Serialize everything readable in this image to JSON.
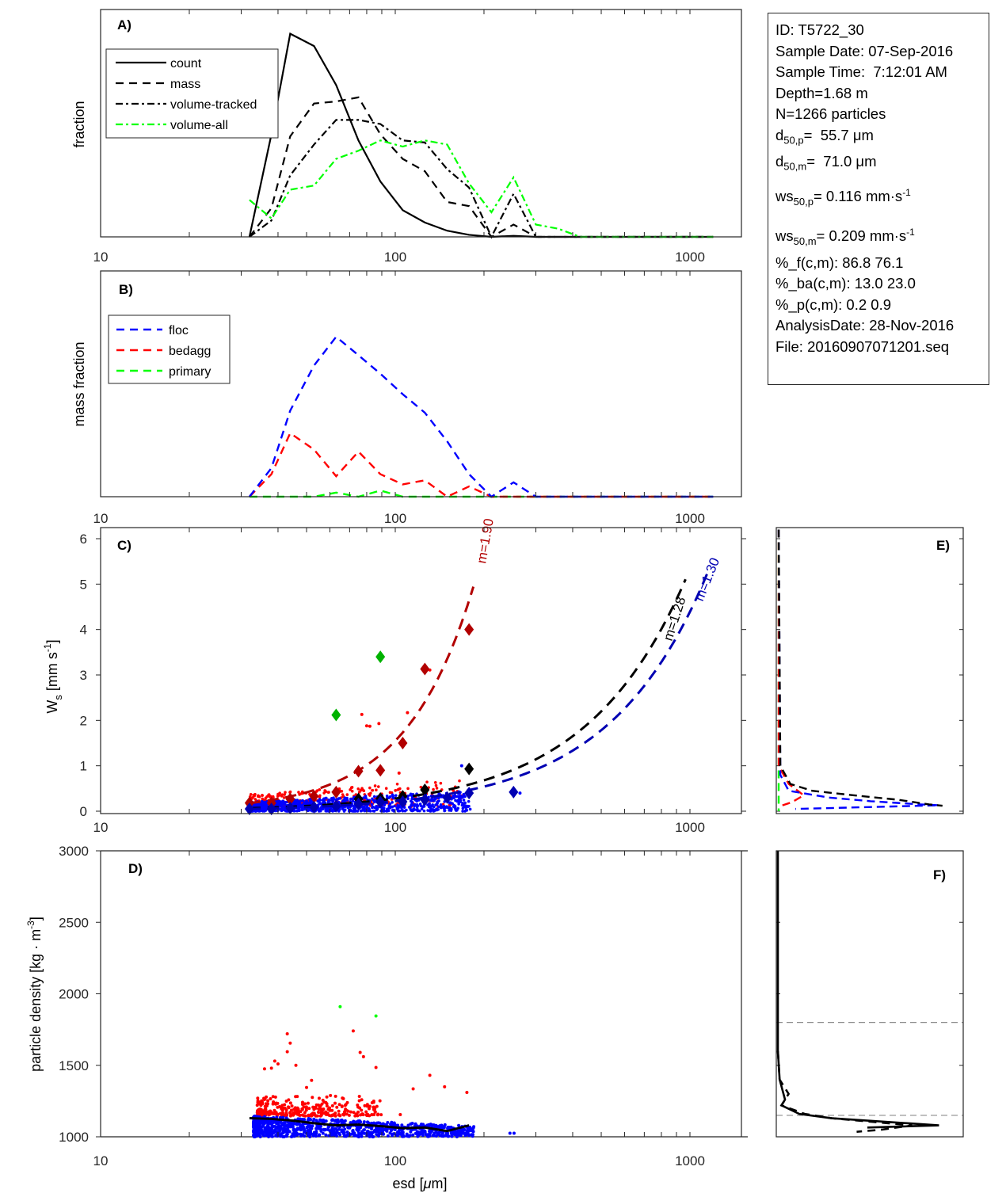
{
  "info_box": {
    "id": "ID: T5722_30",
    "sample_date": "Sample Date: 07-Sep-2016",
    "sample_time": "Sample Time:  7:12:01 AM",
    "depth": "Depth=1.68 m",
    "n_particles": "N=1266 particles",
    "d50p_prefix": "d",
    "d50p_sub": "50,p",
    "d50p_value": "=  55.7 μm",
    "d50m_prefix": "d",
    "d50m_sub": "50,m",
    "d50m_value": "=  71.0 μm",
    "ws50p_prefix": "ws",
    "ws50p_sub": "50,p",
    "ws50p_value": "= 0.116 mm·s",
    "ws50p_sup": "-1",
    "ws50m_prefix": "ws",
    "ws50m_sub": "50,m",
    "ws50m_value": "= 0.209 mm·s",
    "ws50m_sup": "-1",
    "pct_f": "%_f(c,m): 86.8 76.1",
    "pct_ba": "%_ba(c,m): 13.0 23.0",
    "pct_p": "%_p(c,m): 0.2 0.9",
    "analysis_date": "AnalysisDate: 28-Nov-2016",
    "file": "File: 20160907071201.seq"
  },
  "colors": {
    "black": "#000000",
    "green_bright": "#00ff00",
    "blue": "#0000ff",
    "red": "#ff0000",
    "dark_red": "#b20000",
    "dark_blue": "#0000b2",
    "dark_green": "#00b200",
    "gray_ref": "#8c8c8c",
    "axis": "#262626"
  },
  "chart_data": [
    {
      "panel": "A)",
      "type": "line",
      "xscale": "log",
      "xlim": [
        10,
        1500
      ],
      "xticks": [
        10,
        100,
        1000
      ],
      "xticklabels": [
        "10",
        "100",
        "1000"
      ],
      "ylabel": "fraction",
      "ylim": [
        0,
        1
      ],
      "legend": {
        "placement": "top-left",
        "entries": [
          "count",
          "mass",
          "volume-tracked",
          "volume-all"
        ]
      },
      "x": [
        32,
        38,
        44,
        53,
        63,
        75,
        89,
        106,
        126,
        150,
        178,
        212,
        252,
        300,
        357,
        424,
        504,
        600,
        713,
        848,
        1008,
        1200
      ],
      "series": [
        {
          "name": "count",
          "style": "solid",
          "color": "#000000",
          "values": [
            0.0,
            0.5,
            0.99,
            0.93,
            0.74,
            0.47,
            0.27,
            0.13,
            0.07,
            0.03,
            0.01,
            0.0,
            0.005,
            0.0,
            0.0,
            0.0,
            0.0,
            0.0,
            0.0,
            0.0,
            0.0,
            0.0
          ]
        },
        {
          "name": "mass",
          "style": "dashed",
          "color": "#000000",
          "values": [
            0.0,
            0.14,
            0.49,
            0.65,
            0.66,
            0.68,
            0.5,
            0.38,
            0.32,
            0.17,
            0.15,
            0.0,
            0.06,
            0.0,
            0.0,
            0.0,
            0.0,
            0.0,
            0.0,
            0.0,
            0.0,
            0.0
          ]
        },
        {
          "name": "volume-tracked",
          "style": "dashdot",
          "color": "#000000",
          "values": [
            0.0,
            0.08,
            0.3,
            0.45,
            0.57,
            0.57,
            0.55,
            0.47,
            0.46,
            0.33,
            0.24,
            0.0,
            0.21,
            0.0,
            0.0,
            0.0,
            0.0,
            0.0,
            0.0,
            0.0,
            0.0,
            0.0
          ]
        },
        {
          "name": "volume-all",
          "style": "dashdot",
          "color": "#00ff00",
          "values": [
            0.18,
            0.09,
            0.23,
            0.25,
            0.38,
            0.42,
            0.47,
            0.44,
            0.47,
            0.45,
            0.26,
            0.12,
            0.29,
            0.06,
            0.04,
            0.0,
            0.0,
            0.0,
            0.0,
            0.0,
            0.0,
            0.0
          ]
        }
      ]
    },
    {
      "panel": "B)",
      "type": "line",
      "xscale": "log",
      "xlim": [
        10,
        1500
      ],
      "xticks": [
        10,
        100,
        1000
      ],
      "xticklabels": [
        "10",
        "100",
        "1000"
      ],
      "ylabel": "mass fraction",
      "ylim": [
        0,
        1
      ],
      "legend": {
        "placement": "top-left",
        "entries": [
          "floc",
          "bedagg",
          "primary"
        ]
      },
      "x": [
        32,
        38,
        44,
        53,
        63,
        75,
        89,
        106,
        126,
        150,
        178,
        212,
        252,
        300,
        357,
        424,
        504,
        600,
        713,
        848,
        1008,
        1200
      ],
      "series": [
        {
          "name": "floc",
          "style": "dashed",
          "color": "#0000ff",
          "values": [
            0.0,
            0.14,
            0.42,
            0.64,
            0.78,
            0.69,
            0.6,
            0.5,
            0.41,
            0.27,
            0.11,
            0.0,
            0.07,
            0.0,
            0.0,
            0.0,
            0.0,
            0.0,
            0.0,
            0.0,
            0.0,
            0.0
          ]
        },
        {
          "name": "bedagg",
          "style": "dashed",
          "color": "#ff0000",
          "values": [
            0.0,
            0.11,
            0.31,
            0.23,
            0.1,
            0.22,
            0.11,
            0.06,
            0.08,
            0.0,
            0.05,
            0.0,
            0.0,
            0.0,
            0.0,
            0.0,
            0.0,
            0.0,
            0.0,
            0.0,
            0.0,
            0.0
          ]
        },
        {
          "name": "primary",
          "style": "dashed",
          "color": "#00ff00",
          "values": [
            0.0,
            0.0,
            0.0,
            0.0,
            0.02,
            0.0,
            0.03,
            0.0,
            0.0,
            0.0,
            0.0,
            0.0,
            0.0,
            0.0,
            0.0,
            0.0,
            0.0,
            0.0,
            0.0,
            0.0,
            0.0,
            0.0
          ]
        }
      ]
    },
    {
      "panel": "C)",
      "type": "scatter",
      "xscale": "log",
      "xlim": [
        10,
        1500
      ],
      "xticks": [
        10,
        100,
        1000
      ],
      "xticklabels": [
        "10",
        "100",
        "1000"
      ],
      "ylabel_main": "W",
      "ylabel_sub": "s",
      "ylabel_rest": " [mm s",
      "ylabel_sup": "-1",
      "ylabel_end": "]",
      "ylim": [
        0,
        6.2
      ],
      "yticks": [
        0,
        1,
        2,
        3,
        4,
        5,
        6
      ],
      "yticklabels": [
        "0",
        "1",
        "2",
        "3",
        "4",
        "5",
        "6"
      ],
      "fits": [
        {
          "name": "bedagg fit",
          "label": "m=1.90",
          "color": "#b20000",
          "exponent": 1.9,
          "x_range": [
            32,
            185
          ],
          "y_at_100": 1.55
        },
        {
          "name": "all fit",
          "label": "m=1.28",
          "color": "#000000",
          "exponent": 1.28,
          "x_range": [
            32,
            1000
          ],
          "y_at_100": 0.28
        },
        {
          "name": "floc fit",
          "label": "m=1.30",
          "color": "#0000b2",
          "exponent": 1.3,
          "x_range": [
            32,
            1200
          ],
          "y_at_100": 0.22
        }
      ],
      "binned_means": [
        {
          "name": "bedagg",
          "color": "#b20000",
          "points": [
            [
              32,
              0.18
            ],
            [
              38,
              0.18
            ],
            [
              44,
              0.27
            ],
            [
              53,
              0.33
            ],
            [
              63,
              0.42
            ],
            [
              75,
              0.88
            ],
            [
              89,
              0.9
            ],
            [
              106,
              1.5
            ],
            [
              126,
              3.13
            ],
            [
              178,
              4.0
            ]
          ]
        },
        {
          "name": "primary",
          "color": "#00b200",
          "points": [
            [
              63,
              2.12
            ],
            [
              89,
              3.4
            ]
          ]
        },
        {
          "name": "all",
          "color": "#000000",
          "points": [
            [
              75,
              0.27
            ],
            [
              89,
              0.28
            ],
            [
              106,
              0.33
            ],
            [
              126,
              0.47
            ],
            [
              178,
              0.93
            ]
          ]
        },
        {
          "name": "floc",
          "color": "#0000b2",
          "points": [
            [
              32,
              0.05
            ],
            [
              38,
              0.05
            ],
            [
              44,
              0.07
            ],
            [
              53,
              0.09
            ],
            [
              63,
              0.11
            ],
            [
              75,
              0.16
            ],
            [
              89,
              0.2
            ],
            [
              106,
              0.21
            ],
            [
              126,
              0.25
            ],
            [
              150,
              0.3
            ],
            [
              178,
              0.4
            ],
            [
              252,
              0.42
            ]
          ]
        }
      ],
      "scatter_clouds": [
        {
          "name": "floc particles",
          "color": "#0000ff",
          "x_range": [
            32,
            180
          ],
          "y_range": [
            0.0,
            0.45
          ],
          "count": 960
        },
        {
          "name": "bedagg particles",
          "color": "#ff0000",
          "x_range": [
            32,
            170
          ],
          "y_range": [
            0.1,
            0.7
          ],
          "count": 300
        }
      ],
      "outliers": [
        {
          "color": "#ff0000",
          "points": [
            [
              77,
              2.13
            ],
            [
              80,
              1.88
            ],
            [
              82,
              1.87
            ],
            [
              88,
              1.93
            ],
            [
              110,
              2.17
            ],
            [
              175,
              4.0
            ],
            [
              131,
              3.11
            ],
            [
              103,
              0.84
            ]
          ]
        },
        {
          "color": "#0000ff",
          "points": [
            [
              168,
              1.0
            ],
            [
              170,
              0.15
            ],
            [
              176,
              0.1
            ],
            [
              265,
              0.4
            ]
          ]
        }
      ]
    },
    {
      "panel": "D)",
      "type": "scatter",
      "xscale": "log",
      "xlim": [
        10,
        1500
      ],
      "xticks": [
        10,
        100,
        1000
      ],
      "xticklabels": [
        "10",
        "100",
        "1000"
      ],
      "xlabel_prefix": "esd [",
      "xlabel_mu": "μ",
      "xlabel_suffix": "m]",
      "ylabel": "particle density [kg · m",
      "ylabel_sup": "-3",
      "ylabel_end": "]",
      "ylim": [
        1000,
        3000
      ],
      "yticks": [
        1000,
        1500,
        2000,
        2500,
        3000
      ],
      "yticklabels": [
        "1000",
        "1500",
        "2000",
        "2500",
        "3000"
      ],
      "median_line": {
        "color": "#000000",
        "points": [
          [
            32,
            1130
          ],
          [
            38,
            1125
          ],
          [
            44,
            1115
          ],
          [
            53,
            1095
          ],
          [
            63,
            1080
          ],
          [
            75,
            1085
          ],
          [
            89,
            1075
          ],
          [
            106,
            1060
          ],
          [
            126,
            1065
          ],
          [
            150,
            1040
          ],
          [
            178,
            1080
          ]
        ]
      },
      "scatter_clouds": [
        {
          "name": "floc particles",
          "color": "#0000ff",
          "x_range": [
            33,
            185
          ],
          "y_range": [
            1000,
            1145
          ],
          "count": 960
        },
        {
          "name": "bedagg particles",
          "color": "#ff0000",
          "x_range": [
            34,
            90
          ],
          "y_range": [
            1145,
            1300
          ],
          "count": 300
        }
      ],
      "outliers": [
        {
          "color": "#00ff00",
          "points": [
            [
              65,
              1910
            ],
            [
              86,
              1845
            ]
          ]
        },
        {
          "color": "#ff0000",
          "points": [
            [
              43,
              1720
            ],
            [
              44,
              1655
            ],
            [
              43,
              1595
            ],
            [
              72,
              1740
            ],
            [
              76,
              1590
            ],
            [
              78,
              1560
            ],
            [
              86,
              1485
            ],
            [
              36,
              1475
            ],
            [
              38,
              1480
            ],
            [
              39,
              1530
            ],
            [
              40,
              1510
            ],
            [
              46,
              1500
            ],
            [
              131,
              1430
            ],
            [
              147,
              1350
            ],
            [
              115,
              1335
            ],
            [
              175,
              1310
            ],
            [
              104,
              1155
            ],
            [
              52,
              1395
            ],
            [
              50,
              1345
            ]
          ]
        },
        {
          "color": "#0000ff",
          "points": [
            [
              245,
              1025
            ],
            [
              253,
              1025
            ],
            [
              182,
              1055
            ]
          ]
        }
      ]
    },
    {
      "panel": "E)",
      "type": "line",
      "note": "vertical distribution of Ws (shares y-axis with panel C)",
      "ylim": [
        0,
        6.2
      ],
      "xlim": [
        0,
        1
      ],
      "series": [
        {
          "name": "all",
          "style": "dashed",
          "color": "#000000",
          "y": [
            6.2,
            1.0,
            0.6,
            0.45,
            0.35,
            0.25,
            0.15,
            0.12
          ],
          "values": [
            0.0,
            0.01,
            0.07,
            0.2,
            0.45,
            0.72,
            0.9,
            0.98
          ]
        },
        {
          "name": "floc",
          "style": "dashed",
          "color": "#0000ff",
          "y": [
            6.2,
            0.8,
            0.45,
            0.3,
            0.22,
            0.15,
            0.13,
            0.05
          ],
          "values": [
            0.0,
            0.01,
            0.06,
            0.3,
            0.55,
            0.85,
            0.96,
            0.1
          ]
        },
        {
          "name": "bedagg",
          "style": "dashed",
          "color": "#ff0000",
          "y": [
            6.2,
            1.0,
            0.6,
            0.35,
            0.2,
            0.1
          ],
          "values": [
            0.0,
            0.0,
            0.06,
            0.15,
            0.08,
            0.0
          ]
        },
        {
          "name": "primary",
          "style": "dashed",
          "color": "#00ff00",
          "y": [
            6.2,
            0.0
          ],
          "values": [
            0.0,
            0.0
          ]
        }
      ]
    },
    {
      "panel": "F)",
      "type": "line",
      "note": "vertical distribution of particle density (shares y-axis with panel D)",
      "ylim": [
        1000,
        3000
      ],
      "xlim": [
        0,
        1
      ],
      "reference_lines": [
        1150,
        1800
      ],
      "series": [
        {
          "name": "count",
          "style": "solid",
          "color": "#000000",
          "y": [
            3000,
            1600,
            1400,
            1260,
            1220,
            1160,
            1130,
            1080,
            1065
          ],
          "values": [
            0.0,
            0.0,
            0.01,
            0.04,
            0.02,
            0.12,
            0.3,
            0.9,
            0.5
          ]
        },
        {
          "name": "mass",
          "style": "dashed",
          "color": "#000000",
          "y": [
            1600,
            1400,
            1300,
            1220,
            1160,
            1130,
            1080,
            1050,
            1035
          ],
          "values": [
            0.0,
            0.01,
            0.06,
            0.02,
            0.15,
            0.3,
            0.75,
            0.58,
            0.44
          ]
        }
      ]
    }
  ]
}
